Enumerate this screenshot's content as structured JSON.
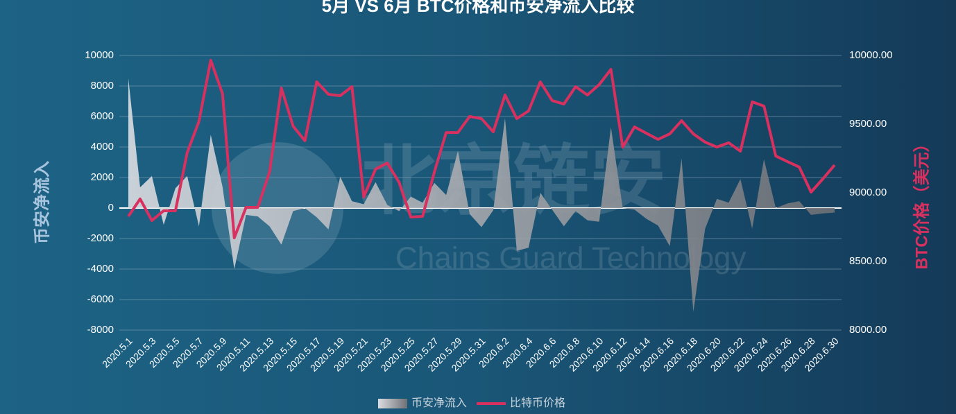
{
  "chart_data": {
    "type": "line",
    "title": "5月 VS 6月 BTC价格和币安净流入比较",
    "y_label": "币安净流入",
    "y2_label": "BTC价格（美元）",
    "watermark": [
      "北京链安",
      "Chains Guard Technology"
    ],
    "categories": [
      "2020.5.1",
      null,
      "2020.5.3",
      null,
      "2020.5.5",
      null,
      "2020.5.7",
      null,
      "2020.5.9",
      null,
      "2020.5.11",
      null,
      "2020.5.13",
      null,
      "2020.5.15",
      null,
      "2020.5.17",
      null,
      "2020.5.19",
      null,
      "2020.5.21",
      null,
      "2020.5.23",
      null,
      "2020.5.25",
      null,
      "2020.5.27",
      null,
      "2020.5.29",
      null,
      "2020.5.31",
      null,
      "2020.6.2",
      null,
      "2020.6.4",
      null,
      "2020.6.6",
      null,
      "2020.6.8",
      null,
      "2020.6.10",
      null,
      "2020.6.12",
      null,
      "2020.6.14",
      null,
      "2020.6.16",
      null,
      "2020.6.18",
      null,
      "2020.6.20",
      null,
      "2020.6.22",
      null,
      "2020.6.24",
      null,
      "2020.6.26",
      null,
      "2020.6.28",
      null,
      "2020.6.30"
    ],
    "series": [
      {
        "name": "币安净流入",
        "type": "area",
        "axis": "y",
        "color": "#c9ccd2",
        "values": [
          8500,
          1360,
          2100,
          -1100,
          1300,
          2100,
          -1200,
          4800,
          1400,
          -4000,
          -450,
          -550,
          -1200,
          -2400,
          -200,
          0,
          -600,
          -1400,
          2050,
          450,
          250,
          1700,
          200,
          -200,
          750,
          350,
          1650,
          850,
          3750,
          -400,
          -1250,
          -150,
          5900,
          -2800,
          -2600,
          1000,
          -100,
          -1200,
          -200,
          -800,
          -900,
          5300,
          0,
          -100,
          -700,
          -1150,
          -2500,
          3250,
          -6800,
          -1350,
          600,
          350,
          1900,
          -1350,
          3200,
          0,
          300,
          450,
          -450,
          -350,
          -300
        ]
      },
      {
        "name": "比特币价格",
        "type": "line",
        "axis": "y2",
        "color": "#d8305f",
        "values": [
          8828,
          8955,
          8798,
          8869,
          8869,
          9293,
          9520,
          9965,
          9722,
          8672,
          8894,
          8894,
          9152,
          9763,
          9485,
          9379,
          9808,
          9717,
          9707,
          9773,
          8970,
          9172,
          9217,
          9076,
          8823,
          8828,
          9152,
          9439,
          9439,
          9556,
          9540,
          9444,
          9712,
          9540,
          9596,
          9808,
          9672,
          9646,
          9773,
          9712,
          9788,
          9899,
          9333,
          9480,
          9434,
          9389,
          9429,
          9525,
          9429,
          9369,
          9333,
          9364,
          9303,
          9662,
          9631,
          9268,
          9227,
          9187,
          9005,
          9101,
          9202
        ]
      }
    ],
    "ylim": [
      -8000,
      10000
    ],
    "yticks": [
      -8000,
      -6000,
      -4000,
      -2000,
      0,
      2000,
      4000,
      6000,
      8000,
      10000
    ],
    "y2lim": [
      8000,
      10000
    ],
    "y2ticks": [
      {
        "value": 8000,
        "label": "8000.00"
      },
      {
        "value": 8500,
        "label": "8500.00"
      },
      {
        "value": 9000,
        "label": "9000.00"
      },
      {
        "value": 9500,
        "label": "9500.00"
      },
      {
        "value": 10000,
        "label": "10000.00"
      }
    ],
    "grid": true,
    "legend": "bottom"
  }
}
